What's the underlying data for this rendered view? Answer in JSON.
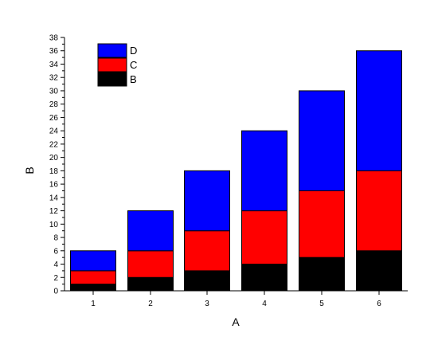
{
  "chart_data": {
    "type": "bar",
    "stacked": true,
    "categories": [
      "1",
      "2",
      "3",
      "4",
      "5",
      "6"
    ],
    "series": [
      {
        "name": "B",
        "values": [
          1,
          2,
          3,
          4,
          5,
          6
        ],
        "color": "#000000"
      },
      {
        "name": "C",
        "values": [
          2,
          4,
          6,
          8,
          10,
          12
        ],
        "color": "#ff0000"
      },
      {
        "name": "D",
        "values": [
          3,
          6,
          9,
          12,
          15,
          18
        ],
        "color": "#0000ff"
      }
    ],
    "title": "",
    "xlabel": "A",
    "ylabel": "B",
    "ylim": [
      0,
      38
    ],
    "yticks": [
      0,
      2,
      4,
      6,
      8,
      10,
      12,
      14,
      16,
      18,
      20,
      22,
      24,
      26,
      28,
      30,
      32,
      34,
      36,
      38
    ],
    "grid": false,
    "legend": {
      "placement": "top-left",
      "order": [
        "D",
        "C",
        "B"
      ]
    }
  }
}
